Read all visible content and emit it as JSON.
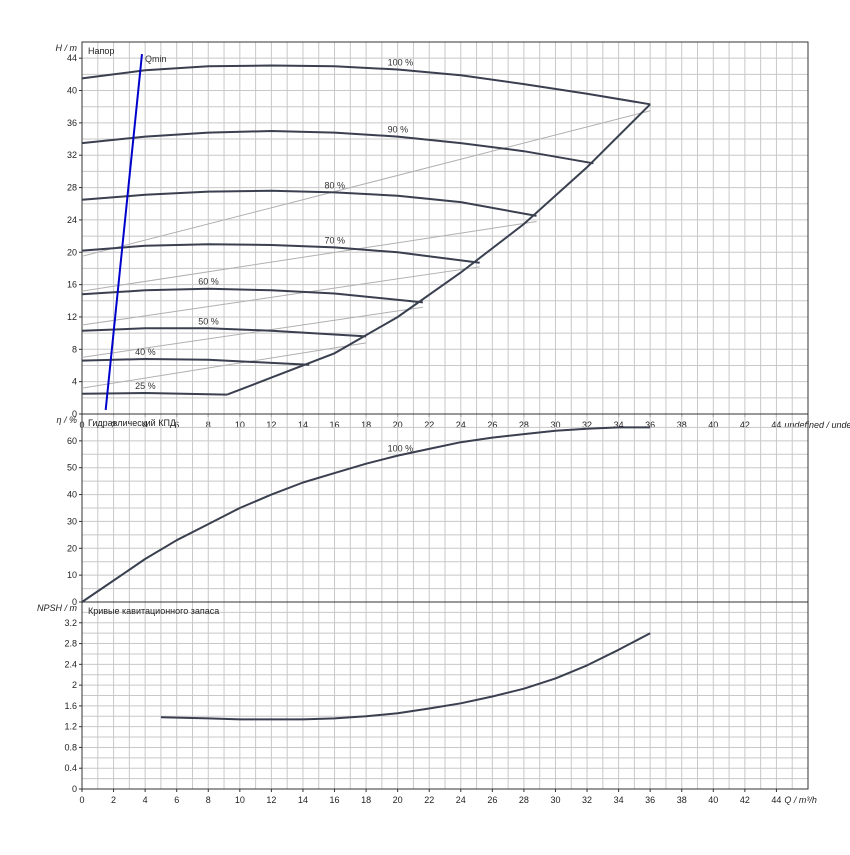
{
  "chart_data": [
    {
      "type": "line",
      "title": "Напор",
      "ylabel": "H",
      "yunit": "m",
      "xlim": [
        0,
        46
      ],
      "ylim": [
        0,
        46
      ],
      "x_ticks": [
        0,
        2,
        4,
        6,
        8,
        10,
        12,
        14,
        16,
        18,
        20,
        22,
        24,
        26,
        28,
        30,
        32,
        34,
        36,
        38,
        40,
        42,
        44
      ],
      "y_ticks": [
        0,
        4,
        8,
        12,
        16,
        20,
        24,
        28,
        32,
        36,
        40,
        44
      ],
      "grid": true,
      "series": [
        {
          "name": "100 %",
          "x": [
            0,
            4,
            8,
            12,
            16,
            20,
            24,
            28,
            32,
            36
          ],
          "y": [
            41.5,
            42.5,
            43.0,
            43.1,
            43.0,
            42.6,
            41.9,
            40.8,
            39.6,
            38.3
          ]
        },
        {
          "name": "90 %",
          "x": [
            0,
            4,
            8,
            12,
            16,
            20,
            24,
            28,
            32.4
          ],
          "y": [
            33.5,
            34.3,
            34.8,
            35.0,
            34.8,
            34.3,
            33.5,
            32.5,
            31.0
          ]
        },
        {
          "name": "80 %",
          "x": [
            0,
            4,
            8,
            12,
            16,
            20,
            24,
            28.8
          ],
          "y": [
            26.5,
            27.1,
            27.5,
            27.6,
            27.4,
            27.0,
            26.2,
            24.5
          ]
        },
        {
          "name": "70 %",
          "x": [
            0,
            4,
            8,
            12,
            16,
            20,
            25.2
          ],
          "y": [
            20.2,
            20.8,
            21.0,
            20.9,
            20.6,
            20.0,
            18.7
          ]
        },
        {
          "name": "60 %",
          "x": [
            0,
            4,
            8,
            12,
            16,
            21.6
          ],
          "y": [
            14.8,
            15.3,
            15.5,
            15.3,
            14.9,
            13.8
          ]
        },
        {
          "name": "50 %",
          "x": [
            0,
            4,
            8,
            12,
            18
          ],
          "y": [
            10.3,
            10.6,
            10.6,
            10.3,
            9.6
          ]
        },
        {
          "name": "40 %",
          "x": [
            0,
            4,
            8,
            14.4
          ],
          "y": [
            6.6,
            6.8,
            6.7,
            6.1
          ]
        },
        {
          "name": "25 %",
          "x": [
            0,
            4,
            9.2
          ],
          "y": [
            2.5,
            2.6,
            2.4
          ]
        }
      ],
      "envelope": {
        "x": [
          9.2,
          12,
          16,
          20,
          24,
          28,
          32,
          36
        ],
        "y": [
          2.4,
          4.5,
          7.5,
          12,
          17.5,
          23.5,
          30.5,
          38.3
        ]
      },
      "efficiency_lines": [
        {
          "x": [
            0,
            36
          ],
          "y": [
            19.5,
            37.5
          ]
        },
        {
          "x": [
            0,
            28.8
          ],
          "y": [
            15.2,
            23.8
          ]
        },
        {
          "x": [
            0,
            25.2
          ],
          "y": [
            11.0,
            18.2
          ]
        },
        {
          "x": [
            0,
            21.6
          ],
          "y": [
            7.0,
            13.2
          ]
        },
        {
          "x": [
            0,
            18
          ],
          "y": [
            3.2,
            8.8
          ]
        }
      ],
      "qmin": {
        "label": "Qmin",
        "x": [
          1.5,
          3.8
        ],
        "y": [
          0.5,
          44.5
        ],
        "color": "#0000cc"
      }
    },
    {
      "type": "line",
      "title": "Гидравлический КПД",
      "ylabel": "η",
      "yunit": "%",
      "xlim": [
        0,
        46
      ],
      "ylim": [
        0,
        70
      ],
      "y_ticks": [
        0,
        10,
        20,
        30,
        40,
        50,
        60
      ],
      "grid": true,
      "series": [
        {
          "name": "100 %",
          "x": [
            0,
            2,
            4,
            6,
            8,
            10,
            12,
            14,
            16,
            18,
            20,
            22,
            24,
            26,
            28,
            30,
            32,
            34,
            36
          ],
          "y": [
            0,
            8,
            16,
            23,
            29,
            35,
            40,
            44.5,
            48,
            51.5,
            54.5,
            57,
            59.5,
            61.2,
            62.5,
            63.8,
            64.5,
            65,
            65
          ]
        }
      ]
    },
    {
      "type": "line",
      "title": "Кривые кавитационного запаса",
      "ylabel": "NPSH",
      "yunit": "m",
      "xlim": [
        0,
        46
      ],
      "ylim": [
        0,
        3.6
      ],
      "y_ticks": [
        0,
        0.4,
        0.8,
        1.2,
        1.6,
        2,
        2.4,
        2.8,
        3.2
      ],
      "x_ticks": [
        0,
        2,
        4,
        6,
        8,
        10,
        12,
        14,
        16,
        18,
        20,
        22,
        24,
        26,
        28,
        30,
        32,
        34,
        36,
        38,
        40,
        42,
        44
      ],
      "xlabel": "Q",
      "xunit": "m³/h",
      "grid": true,
      "series": [
        {
          "name": "",
          "x": [
            5,
            8,
            10,
            12,
            14,
            16,
            18,
            20,
            22,
            24,
            26,
            28,
            30,
            32,
            34,
            36
          ],
          "y": [
            1.38,
            1.36,
            1.34,
            1.34,
            1.34,
            1.36,
            1.4,
            1.46,
            1.55,
            1.65,
            1.78,
            1.93,
            2.13,
            2.38,
            2.68,
            3.0
          ]
        }
      ]
    }
  ]
}
